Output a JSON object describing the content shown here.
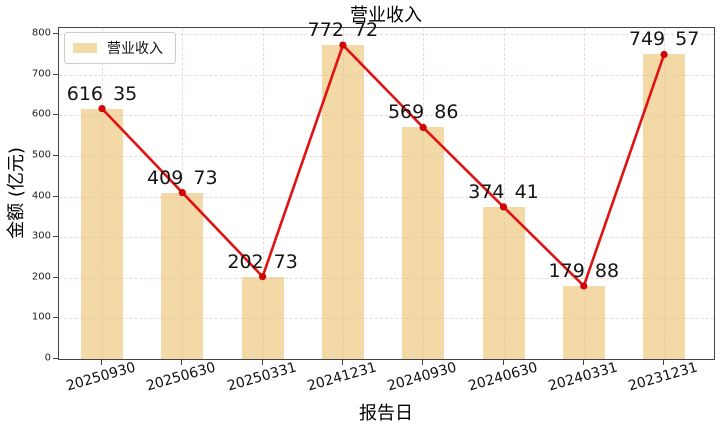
{
  "chart_data": {
    "type": "bar",
    "overlay": "line-with-markers",
    "title": "营业收入",
    "xlabel": "报告日",
    "ylabel": "金额 (亿元)",
    "legend": {
      "label": "营业收入",
      "position": "upper-left"
    },
    "categories": [
      "20250930",
      "20250630",
      "20250331",
      "20241231",
      "20240930",
      "20240630",
      "20240331",
      "20231231"
    ],
    "values": [
      616.35,
      409.73,
      202.73,
      772.72,
      569.86,
      374.41,
      179.88,
      749.57
    ],
    "point_labels": [
      "616 35",
      "409 73",
      "202 73",
      "772 72",
      "569 86",
      "374 41",
      "179 88",
      "749 57"
    ],
    "ylim": [
      0,
      800
    ],
    "yticks": [
      0,
      100,
      200,
      300,
      400,
      500,
      600,
      700,
      800
    ],
    "grid": true,
    "colors": {
      "bar": "#f2d9a6",
      "line": "#e01212",
      "marker": "#cf0404",
      "grid": "#ecc9c3",
      "frame": "#444444",
      "data_label": "#141414"
    }
  }
}
